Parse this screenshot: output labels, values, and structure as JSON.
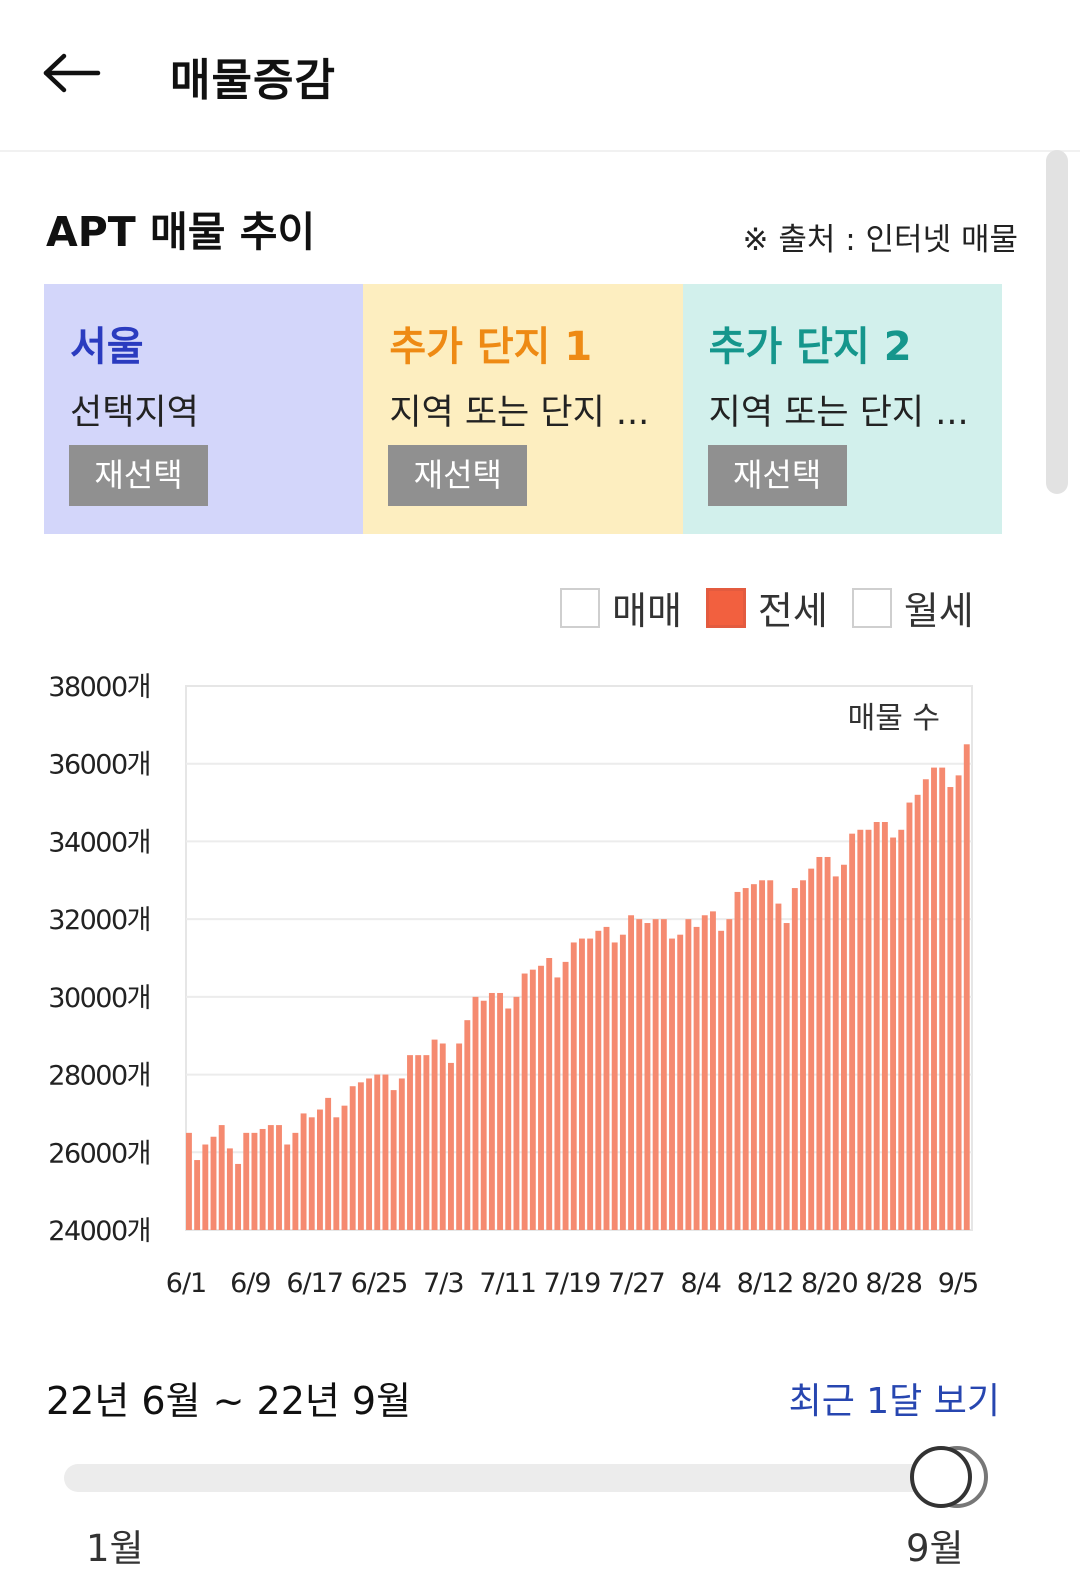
{
  "header": {
    "title": "매물증감",
    "back_icon": "arrow-left-icon"
  },
  "section": {
    "title": "APT 매물 추이",
    "source": "※ 출처 : 인터넷 매물"
  },
  "panels": [
    {
      "name": "서울",
      "sub": "선택지역",
      "button": "재선택",
      "bg": "#d3d6fa",
      "color": "#2a3bbf"
    },
    {
      "name": "추가 단지 1",
      "sub": "지역 또는 단지 ...",
      "button": "재선택",
      "bg": "#fdeec0",
      "color": "#ee8a14"
    },
    {
      "name": "추가 단지 2",
      "sub": "지역 또는 단지 ...",
      "button": "재선택",
      "bg": "#d2f0ec",
      "color": "#15968c"
    }
  ],
  "legend": [
    {
      "label": "매매",
      "checked": false
    },
    {
      "label": "전세",
      "checked": true
    },
    {
      "label": "월세",
      "checked": false
    }
  ],
  "chart_data": {
    "type": "bar",
    "title": "매물 수",
    "bar_color": "#f58a70",
    "ylim": [
      24000,
      38000
    ],
    "y_ticks": [
      "38000개",
      "36000개",
      "34000개",
      "32000개",
      "30000개",
      "28000개",
      "26000개",
      "24000개"
    ],
    "x_ticks": [
      "6/1",
      "6/9",
      "6/17",
      "6/25",
      "7/3",
      "7/11",
      "7/19",
      "7/27",
      "8/4",
      "8/12",
      "8/20",
      "8/28",
      "9/5"
    ],
    "grid": true,
    "values": [
      26500,
      25800,
      26200,
      26400,
      26700,
      26100,
      25700,
      26500,
      26500,
      26600,
      26700,
      26700,
      26200,
      26500,
      27000,
      26900,
      27100,
      27400,
      26900,
      27200,
      27700,
      27800,
      27900,
      28000,
      28000,
      27600,
      27900,
      28500,
      28500,
      28500,
      28900,
      28800,
      28300,
      28800,
      29400,
      30000,
      29900,
      30100,
      30100,
      29700,
      30000,
      30600,
      30700,
      30800,
      31000,
      30500,
      30900,
      31400,
      31500,
      31500,
      31700,
      31800,
      31400,
      31600,
      32100,
      32000,
      31900,
      32000,
      32000,
      31500,
      31600,
      32000,
      31800,
      32100,
      32200,
      31700,
      32000,
      32700,
      32800,
      32900,
      33000,
      33000,
      32400,
      31900,
      32800,
      33000,
      33300,
      33600,
      33600,
      33100,
      33400,
      34200,
      34300,
      34300,
      34500,
      34500,
      34100,
      34300,
      35000,
      35200,
      35600,
      35900,
      35900,
      35400,
      35700,
      36500
    ]
  },
  "range": {
    "text": "22년 6월 ~ 22년 9월",
    "link": "최근 1달 보기"
  },
  "slider": {
    "min_label": "1월",
    "max_label": "9월",
    "value": 1.0
  }
}
